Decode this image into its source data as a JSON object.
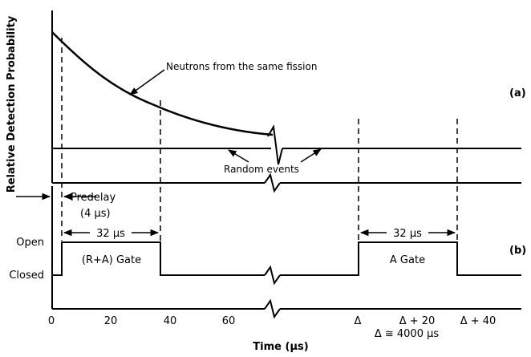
{
  "figure": {
    "panel_a": {
      "ylabel": "Relative Detection Probability",
      "tag": "(a)",
      "annotations": {
        "decay": "Neutrons from the same fission",
        "random": "Random events"
      }
    },
    "panel_b": {
      "tag": "(b)",
      "states": {
        "open": "Open",
        "closed": "Closed"
      },
      "predelay_line1": "Predelay",
      "predelay_line2": "(4 μs)",
      "gate_width_1": "32 μs",
      "gate_width_2": "32 μs",
      "gate_ra": "(R+A) Gate",
      "gate_a": "A Gate"
    },
    "xaxis": {
      "title": "Time (μs)",
      "ticks": [
        "0",
        "20",
        "40",
        "60",
        "Δ",
        "Δ + 20",
        "Δ + 40"
      ],
      "note": "Δ ≅ 4000 μs"
    }
  }
}
